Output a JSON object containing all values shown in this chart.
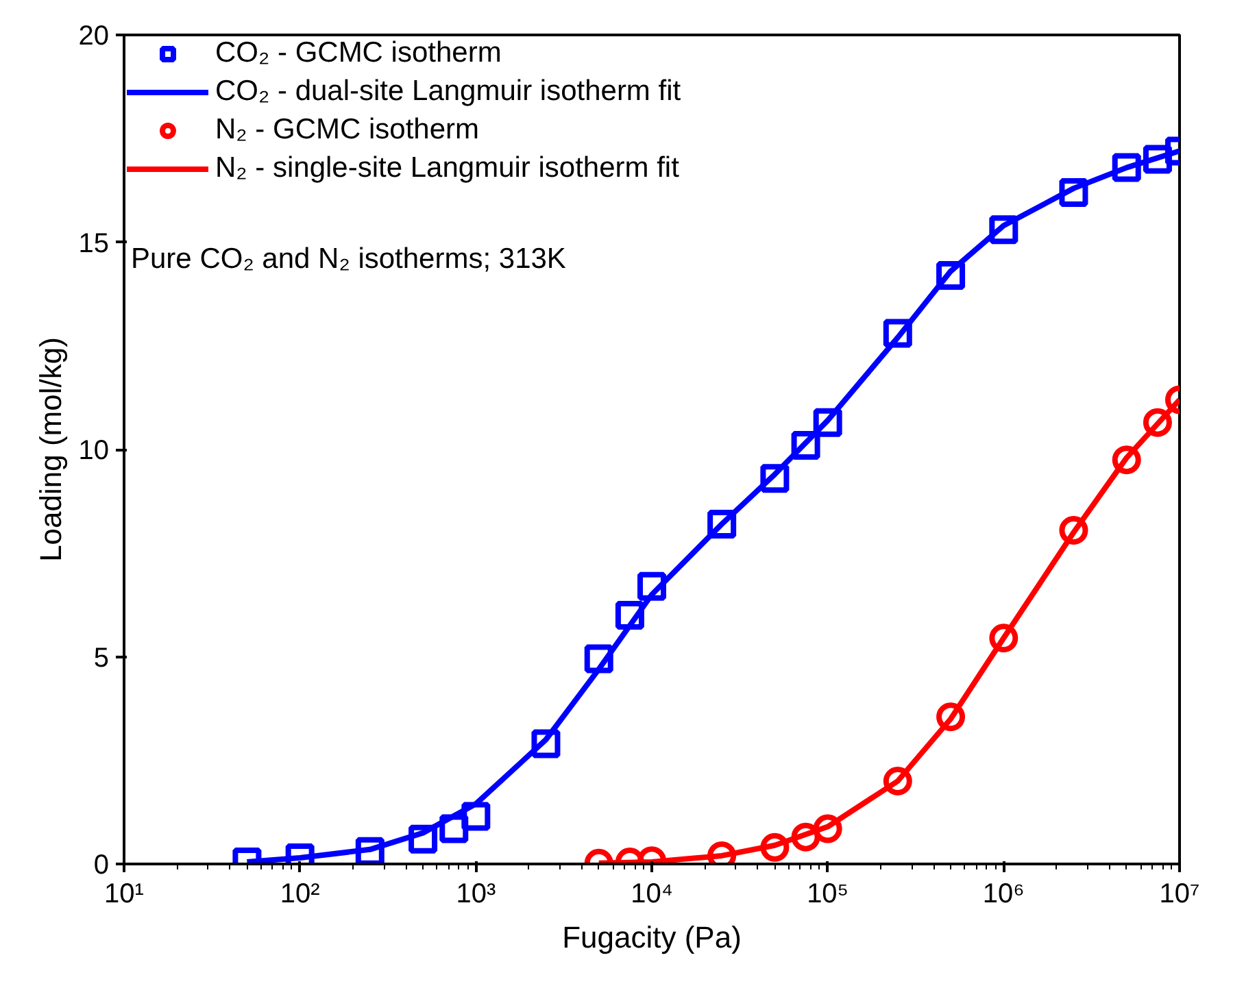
{
  "chart_data": {
    "type": "scatter",
    "xlabel": "Fugacity (Pa)",
    "ylabel": "Loading (mol/kg)",
    "log": "x",
    "grid": false,
    "legend": "top left",
    "xlim": [
      10,
      10000000
    ],
    "ylim": [
      0,
      20
    ],
    "xticks": [
      {
        "value": 10,
        "label": "10¹"
      },
      {
        "value": 100,
        "label": "10²"
      },
      {
        "value": 1000,
        "label": "10³"
      },
      {
        "value": 10000,
        "label": "10⁴"
      },
      {
        "value": 100000,
        "label": "10⁵"
      },
      {
        "value": 1000000,
        "label": "10⁶"
      },
      {
        "value": 10000000,
        "label": "10⁷"
      }
    ],
    "yticks": [
      0,
      5,
      10,
      15,
      20
    ],
    "annotations": [
      "Pure CO₂ and N₂ isotherms; 313K"
    ],
    "series": [
      {
        "name": "CO₂ - GCMC isotherm",
        "marker": "square",
        "color": "#0000ff",
        "x": [
          50,
          100,
          250,
          500,
          750,
          1000,
          2500,
          5000,
          7500,
          10000,
          25000,
          50000,
          75000,
          100000,
          250000,
          500000,
          1000000,
          2500000,
          5000000,
          7500000,
          10000000
        ],
        "values": [
          0.05,
          0.15,
          0.3,
          0.6,
          0.85,
          1.15,
          2.9,
          4.95,
          6.0,
          6.7,
          8.2,
          9.3,
          10.1,
          10.65,
          12.8,
          14.2,
          15.3,
          16.2,
          16.8,
          17.0,
          17.2
        ]
      },
      {
        "name": "CO₂ - dual-site Langmuir isotherm fit",
        "type": "line",
        "line_style": "solid",
        "color": "#0000ff",
        "x": [
          50,
          100,
          250,
          500,
          1000,
          2500,
          5000,
          10000,
          25000,
          50000,
          100000,
          250000,
          500000,
          1000000,
          2500000,
          5000000,
          10000000
        ],
        "values": [
          0.05,
          0.15,
          0.35,
          0.75,
          1.45,
          3.0,
          4.7,
          6.5,
          8.2,
          9.4,
          10.7,
          12.7,
          14.3,
          15.4,
          16.3,
          16.8,
          17.2
        ]
      },
      {
        "name": "N₂ - GCMC isotherm",
        "marker": "circle",
        "color": "#ff0000",
        "x": [
          5000,
          7500,
          10000,
          25000,
          50000,
          75000,
          100000,
          250000,
          500000,
          1000000,
          2500000,
          5000000,
          7500000,
          10000000
        ],
        "values": [
          0.02,
          0.05,
          0.08,
          0.2,
          0.4,
          0.65,
          0.85,
          2.0,
          3.55,
          5.45,
          8.05,
          9.75,
          10.65,
          11.2
        ]
      },
      {
        "name": "N₂ - single-site Langmuir isotherm fit",
        "type": "line",
        "line_style": "solid",
        "color": "#ff0000",
        "x": [
          5000,
          10000,
          25000,
          50000,
          100000,
          250000,
          500000,
          1000000,
          2500000,
          5000000,
          10000000
        ],
        "values": [
          0.02,
          0.05,
          0.2,
          0.45,
          0.9,
          2.0,
          3.5,
          5.45,
          8.0,
          9.8,
          11.2
        ]
      }
    ]
  }
}
